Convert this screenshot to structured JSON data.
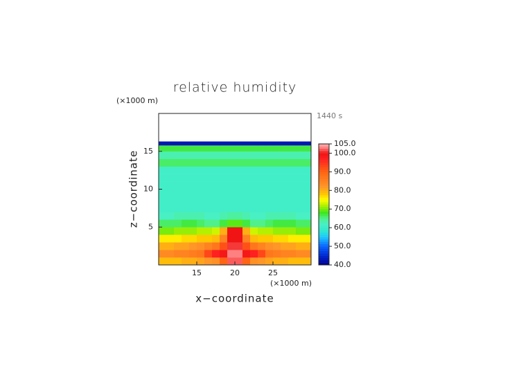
{
  "chart_data": {
    "type": "heatmap",
    "title": "relative humidity",
    "x_unit": "(×1000 m)",
    "y_unit": "(×1000 m)",
    "time_label": "1440 s",
    "x_label": "x−coordinate",
    "y_label": "z−coordinate",
    "xlim": [
      10,
      30
    ],
    "ylim": [
      0,
      20
    ],
    "xticks": [
      15,
      20,
      25
    ],
    "yticks": [
      5,
      10,
      15
    ],
    "xbins": [
      10,
      11,
      12,
      13,
      14,
      15,
      16,
      17,
      18,
      19,
      20,
      21,
      22,
      23,
      24,
      25,
      26,
      27,
      28,
      29,
      30
    ],
    "ybins": [
      0,
      1,
      2,
      3,
      4,
      5,
      6,
      7,
      8,
      9,
      10,
      11,
      12,
      13,
      14,
      15,
      15.8,
      16.3
    ],
    "values": [
      [
        79,
        79,
        79,
        80,
        80,
        81,
        82,
        83,
        90,
        102,
        102,
        90,
        83,
        82,
        81,
        80,
        80,
        79,
        79,
        79
      ],
      [
        84,
        84,
        85,
        85,
        86,
        87,
        93,
        97,
        99,
        103,
        103,
        99,
        97,
        93,
        87,
        86,
        85,
        85,
        84,
        84
      ],
      [
        80,
        80,
        81,
        81,
        82,
        83,
        85,
        87,
        92,
        101,
        101,
        92,
        87,
        85,
        83,
        82,
        81,
        81,
        80,
        80
      ],
      [
        76,
        76,
        76,
        77,
        77,
        78,
        78,
        79,
        85,
        100,
        100,
        85,
        79,
        78,
        78,
        77,
        77,
        76,
        76,
        76
      ],
      [
        70,
        70,
        71,
        71,
        71,
        72,
        72,
        73,
        80,
        100,
        100,
        80,
        73,
        72,
        72,
        71,
        71,
        71,
        70,
        70
      ],
      [
        66,
        66,
        66,
        67,
        67,
        66,
        65,
        65,
        67,
        69,
        69,
        67,
        65,
        65,
        66,
        67,
        67,
        67,
        66,
        66
      ],
      [
        62,
        62,
        63,
        63,
        63,
        63,
        62,
        62,
        63,
        64,
        64,
        63,
        62,
        62,
        63,
        63,
        63,
        63,
        62,
        62
      ],
      [
        61,
        61,
        61,
        61,
        61,
        61,
        61,
        61,
        61,
        61,
        61,
        61,
        61,
        61,
        61,
        61,
        61,
        61,
        61,
        61
      ],
      [
        61,
        61,
        61,
        61,
        61,
        61,
        61,
        61,
        61,
        61,
        61,
        61,
        61,
        61,
        61,
        61,
        61,
        61,
        61,
        61
      ],
      [
        61,
        61,
        61,
        61,
        61,
        61,
        61,
        61,
        61,
        61,
        61,
        61,
        61,
        61,
        61,
        61,
        61,
        61,
        61,
        61
      ],
      [
        61,
        61,
        61,
        61,
        61,
        61,
        61,
        61,
        61,
        61,
        61,
        61,
        61,
        61,
        61,
        61,
        61,
        61,
        61,
        61
      ],
      [
        61,
        61,
        61,
        61,
        61,
        61,
        61,
        61,
        61,
        61,
        61,
        61,
        61,
        61,
        61,
        61,
        61,
        61,
        61,
        61
      ],
      [
        61,
        61,
        61,
        61,
        61,
        61,
        61,
        61,
        61,
        61,
        61,
        61,
        61,
        61,
        61,
        61,
        61,
        61,
        61,
        61
      ],
      [
        66,
        66,
        66,
        66,
        66,
        66,
        66,
        66,
        66,
        66,
        66,
        66,
        66,
        66,
        66,
        66,
        66,
        66,
        66,
        66
      ],
      [
        63,
        63,
        63,
        63,
        63,
        63,
        63,
        63,
        63,
        63,
        63,
        63,
        63,
        63,
        63,
        63,
        63,
        63,
        63,
        63
      ],
      [
        67,
        67,
        67,
        67,
        67,
        67,
        67,
        67,
        67,
        67,
        67,
        67,
        67,
        67,
        67,
        67,
        67,
        67,
        67,
        67
      ],
      [
        43,
        43,
        43,
        43,
        43,
        43,
        43,
        43,
        43,
        43,
        43,
        43,
        43,
        43,
        43,
        43,
        43,
        43,
        43,
        43
      ]
    ],
    "colorlim": [
      40,
      105
    ],
    "colorticks": [
      {
        "value": 40,
        "label": "40.0"
      },
      {
        "value": 50,
        "label": "50.0"
      },
      {
        "value": 60,
        "label": "60.0"
      },
      {
        "value": 70,
        "label": "70.0"
      },
      {
        "value": 80,
        "label": "80.0"
      },
      {
        "value": 90,
        "label": "90.0"
      },
      {
        "value": 100,
        "label": "100.0"
      },
      {
        "value": 105,
        "label": "105.0"
      }
    ],
    "colorscale": [
      [
        40,
        "#00008c"
      ],
      [
        45,
        "#0028d2"
      ],
      [
        50,
        "#0a64ff"
      ],
      [
        55,
        "#1ec8ff"
      ],
      [
        58,
        "#2ee6d2"
      ],
      [
        62,
        "#48f0c4"
      ],
      [
        65,
        "#50f08c"
      ],
      [
        68,
        "#3ce61e"
      ],
      [
        72,
        "#b4f000"
      ],
      [
        75,
        "#ffff00"
      ],
      [
        78,
        "#ffc800"
      ],
      [
        82,
        "#ff9628"
      ],
      [
        90,
        "#ff6414"
      ],
      [
        97,
        "#ff2020"
      ],
      [
        100,
        "#f01414"
      ],
      [
        103,
        "#ff8080"
      ],
      [
        105,
        "#ffb4b4"
      ]
    ]
  }
}
